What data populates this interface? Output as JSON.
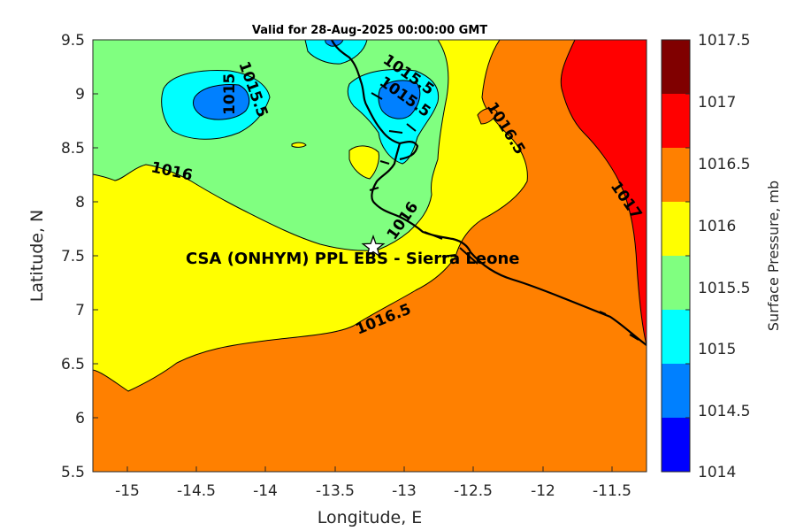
{
  "title": "Valid for 28-Aug-2025 00:00:00 GMT",
  "axes": {
    "xlabel": "Longitude, E",
    "ylabel": "Latitude, N",
    "xlim": [
      -15.25,
      -11.25
    ],
    "ylim": [
      5.5,
      9.5
    ],
    "xticks": [
      "-15",
      "-14.5",
      "-14",
      "-13.5",
      "-13",
      "-12.5",
      "-12",
      "-11.5"
    ],
    "yticks": [
      "5.5",
      "6",
      "6.5",
      "7",
      "7.5",
      "8",
      "8.5",
      "9",
      "9.5"
    ]
  },
  "colorbar": {
    "label": "Surface Pressure, mb",
    "ticks": [
      "1014",
      "1014.5",
      "1015",
      "1015.5",
      "1016",
      "1016.5",
      "1017",
      "1017.5"
    ],
    "colors": [
      "#0000ff",
      "#0080ff",
      "#00ffff",
      "#80ff80",
      "#ffff00",
      "#ff8000",
      "#ff0000",
      "#800000"
    ]
  },
  "contour_labels": [
    "1015.5",
    "1015",
    "1015.5",
    "1015.5",
    "1016",
    "1016.5",
    "1016",
    "1016.5",
    "1017"
  ],
  "station": {
    "label": "CSA (ONHYM) PPL EBS  - Sierra Leone",
    "lon": -13.24,
    "lat": 7.6,
    "marker": "star"
  }
}
